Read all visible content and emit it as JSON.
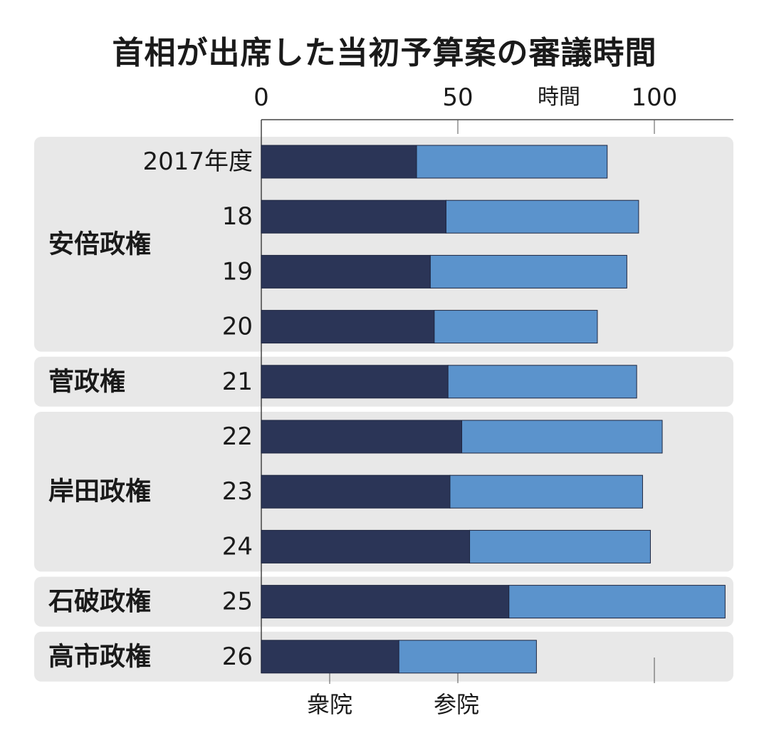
{
  "chart_data": {
    "type": "bar",
    "orientation": "horizontal",
    "stacked": true,
    "title": "首相が出席した当初予算案の審議時間",
    "unit": "時間",
    "xlim": [
      0,
      120
    ],
    "x_ticks": [
      "0",
      "50",
      "100"
    ],
    "x_tick_values": [
      0,
      50,
      100
    ],
    "categories": [
      "2017年度",
      "18",
      "19",
      "20",
      "21",
      "22",
      "23",
      "24",
      "25",
      "26"
    ],
    "groups": [
      {
        "label": "安倍政権",
        "categories": [
          "2017年度",
          "18",
          "19",
          "20"
        ]
      },
      {
        "label": "菅政権",
        "categories": [
          "21"
        ]
      },
      {
        "label": "岸田政権",
        "categories": [
          "22",
          "23",
          "24"
        ]
      },
      {
        "label": "石破政権",
        "categories": [
          "25"
        ]
      },
      {
        "label": "高市政権",
        "categories": [
          "26"
        ]
      }
    ],
    "series": [
      {
        "name": "衆院",
        "values": [
          39.5,
          47,
          43,
          44,
          47.5,
          51,
          48,
          53,
          63,
          35
        ]
      },
      {
        "name": "参院",
        "values": [
          48.5,
          49,
          50,
          41.5,
          48,
          51,
          49,
          46,
          55,
          35
        ]
      }
    ],
    "grid": true,
    "legend_placement": "bottom"
  },
  "colors": {
    "shuin": "#2b3557",
    "sanin": "#5b93cc",
    "group_bg": "#e8e8e8",
    "axis": "#444444",
    "grid": "#555555"
  }
}
